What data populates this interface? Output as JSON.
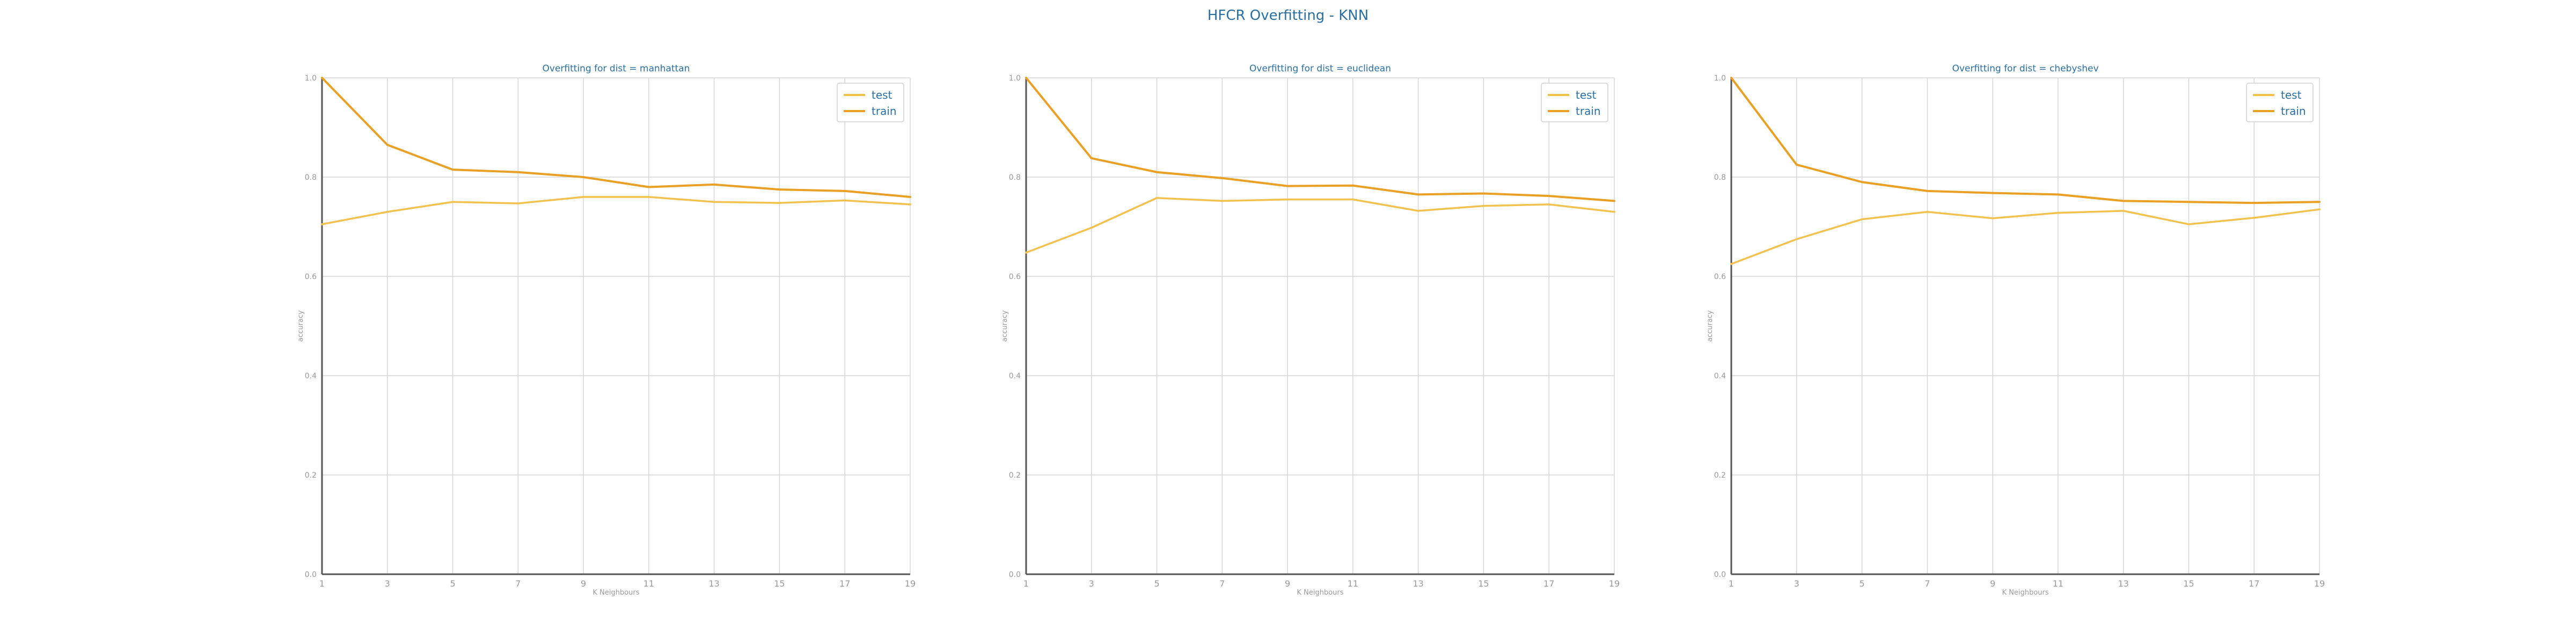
{
  "figure": {
    "title": "HFCR Overfitting - KNN"
  },
  "style": {
    "test_color": "#f2c14e",
    "train_color": "#e9a024",
    "title_color": "#2a6fa3",
    "tick_color": "#999999",
    "grid_color": "#d6d6d6",
    "axis_color": "#555555"
  },
  "chart_data": [
    {
      "type": "line",
      "title": "Overfitting for dist = manhattan",
      "xlabel": "K Neighbours",
      "ylabel": "accuracy",
      "x": [
        1,
        3,
        5,
        7,
        9,
        11,
        13,
        15,
        17,
        19
      ],
      "ylim": [
        0,
        1
      ],
      "yticks": [
        "0.0",
        "0.2",
        "0.4",
        "0.6",
        "0.8",
        "1.0"
      ],
      "grid": true,
      "legend": "top-right",
      "series": [
        {
          "name": "test",
          "values": [
            0.705,
            0.73,
            0.75,
            0.747,
            0.76,
            0.76,
            0.75,
            0.748,
            0.753,
            0.745
          ]
        },
        {
          "name": "train",
          "values": [
            1.0,
            0.865,
            0.815,
            0.81,
            0.8,
            0.78,
            0.785,
            0.775,
            0.772,
            0.76
          ]
        }
      ]
    },
    {
      "type": "line",
      "title": "Overfitting for dist = euclidean",
      "xlabel": "K Neighbours",
      "ylabel": "accuracy",
      "x": [
        1,
        3,
        5,
        7,
        9,
        11,
        13,
        15,
        17,
        19
      ],
      "ylim": [
        0,
        1
      ],
      "yticks": [
        "0.0",
        "0.2",
        "0.4",
        "0.6",
        "0.8",
        "1.0"
      ],
      "grid": true,
      "legend": "top-right",
      "series": [
        {
          "name": "test",
          "values": [
            0.648,
            0.698,
            0.758,
            0.752,
            0.755,
            0.755,
            0.732,
            0.742,
            0.745,
            0.73
          ]
        },
        {
          "name": "train",
          "values": [
            1.0,
            0.838,
            0.81,
            0.798,
            0.782,
            0.783,
            0.765,
            0.767,
            0.762,
            0.752
          ]
        }
      ]
    },
    {
      "type": "line",
      "title": "Overfitting for dist = chebyshev",
      "xlabel": "K Neighbours",
      "ylabel": "accuracy",
      "x": [
        1,
        3,
        5,
        7,
        9,
        11,
        13,
        15,
        17,
        19
      ],
      "ylim": [
        0,
        1
      ],
      "yticks": [
        "0.0",
        "0.2",
        "0.4",
        "0.6",
        "0.8",
        "1.0"
      ],
      "grid": true,
      "legend": "top-right",
      "series": [
        {
          "name": "test",
          "values": [
            0.625,
            0.675,
            0.715,
            0.73,
            0.717,
            0.728,
            0.732,
            0.705,
            0.718,
            0.735
          ]
        },
        {
          "name": "train",
          "values": [
            1.0,
            0.825,
            0.79,
            0.772,
            0.768,
            0.765,
            0.752,
            0.75,
            0.748,
            0.75
          ]
        }
      ]
    }
  ]
}
